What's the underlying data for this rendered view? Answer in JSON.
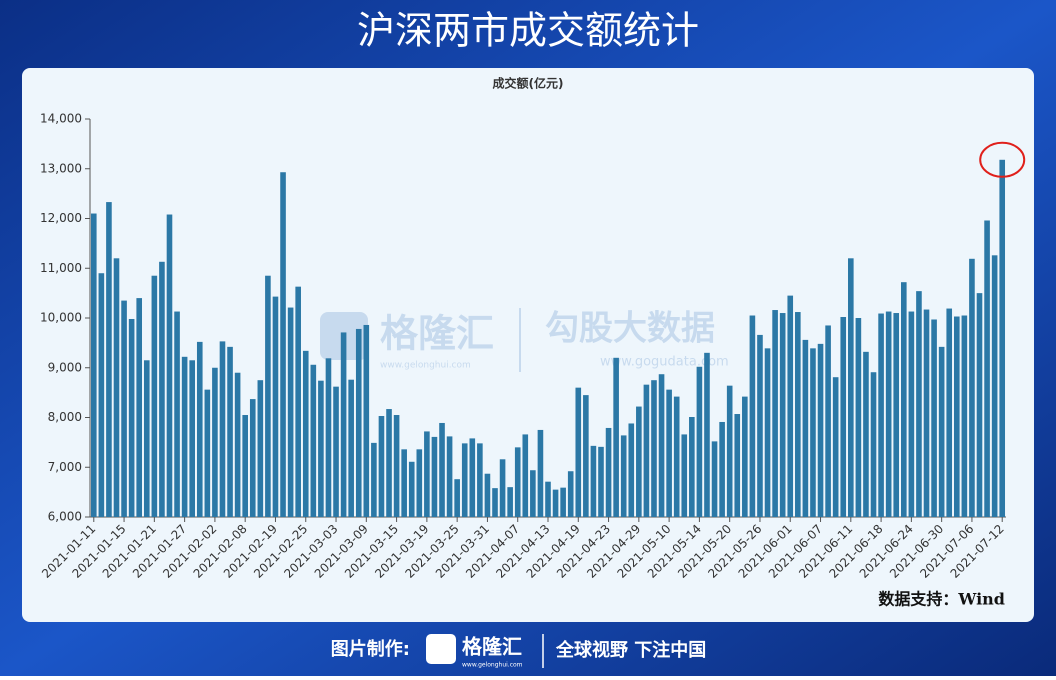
{
  "header": {
    "title": "沪深两市成交额统计"
  },
  "chart_data": {
    "type": "bar",
    "title": "成交额(亿元)",
    "color": "#2b78a6",
    "grid": false,
    "categories": [
      "2021-01-11",
      null,
      null,
      null,
      "2021-01-15",
      null,
      null,
      null,
      "2021-01-21",
      null,
      null,
      null,
      "2021-01-27",
      null,
      null,
      null,
      "2021-02-02",
      null,
      null,
      null,
      "2021-02-08",
      null,
      null,
      null,
      "2021-02-19",
      null,
      null,
      null,
      "2021-02-25",
      null,
      null,
      null,
      "2021-03-03",
      null,
      null,
      null,
      "2021-03-09",
      null,
      null,
      null,
      "2021-03-15",
      null,
      null,
      null,
      "2021-03-19",
      null,
      null,
      null,
      "2021-03-25",
      null,
      null,
      null,
      "2021-03-31",
      null,
      null,
      null,
      "2021-04-07",
      null,
      null,
      null,
      "2021-04-13",
      null,
      null,
      null,
      "2021-04-19",
      null,
      null,
      null,
      "2021-04-23",
      null,
      null,
      null,
      "2021-04-29",
      null,
      null,
      null,
      "2021-05-10",
      null,
      null,
      null,
      "2021-05-14",
      null,
      null,
      null,
      "2021-05-20",
      null,
      null,
      null,
      "2021-05-26",
      null,
      null,
      null,
      "2021-06-01",
      null,
      null,
      null,
      "2021-06-07",
      null,
      null,
      null,
      "2021-06-11",
      null,
      null,
      null,
      "2021-06-18",
      null,
      null,
      null,
      "2021-06-24",
      null,
      null,
      null,
      "2021-06-30",
      null,
      null,
      null,
      "2021-07-06",
      null,
      null,
      null,
      "2021-07-12"
    ],
    "values": [
      12100,
      10900,
      12330,
      11200,
      10350,
      9980,
      10400,
      9150,
      10850,
      11130,
      12080,
      10130,
      9220,
      9150,
      9520,
      8560,
      9000,
      9530,
      9420,
      8900,
      8050,
      8370,
      8750,
      10850,
      10430,
      12930,
      10210,
      10630,
      9340,
      9060,
      8740,
      9190,
      8620,
      9710,
      8760,
      9780,
      9860,
      7490,
      8030,
      8170,
      8050,
      7360,
      7110,
      7360,
      7720,
      7610,
      7890,
      7620,
      6760,
      7480,
      7580,
      7480,
      6870,
      6580,
      7160,
      6600,
      7400,
      7660,
      6940,
      7750,
      6710,
      6550,
      6590,
      6920,
      8600,
      8450,
      7430,
      7410,
      7790,
      9200,
      7640,
      7880,
      8220,
      8660,
      8750,
      8870,
      8560,
      8420,
      7660,
      8010,
      9020,
      9300,
      7520,
      7910,
      8640,
      8070,
      8420,
      10050,
      9660,
      9390,
      10160,
      10100,
      10450,
      10120,
      9560,
      9390,
      9480,
      9850,
      8810,
      10020,
      11200,
      10000,
      9320,
      8910,
      10090,
      10130,
      10100,
      10720,
      10130,
      10540,
      10170,
      9970,
      9420,
      10190,
      10030,
      10050,
      11190,
      10500,
      11960,
      11260,
      13180
    ],
    "ylim": [
      6000,
      14000
    ],
    "yticks": [
      {
        "value": 6000,
        "label": "6,000"
      },
      {
        "value": 7000,
        "label": "7,000"
      },
      {
        "value": 8000,
        "label": "8,000"
      },
      {
        "value": 9000,
        "label": "9,000"
      },
      {
        "value": 10000,
        "label": "10,000"
      },
      {
        "value": 11000,
        "label": "11,000"
      },
      {
        "value": 12000,
        "label": "12,000"
      },
      {
        "value": 13000,
        "label": "13,000"
      },
      {
        "value": 14000,
        "label": "14,000"
      }
    ],
    "source": "数据支持：Wind"
  },
  "watermark": {
    "brand": "格隆汇",
    "brand_url": "www.gelonghui.com",
    "partner": "勾股大数据",
    "partner_url": "www.gogudata.com"
  },
  "footer": {
    "made_by": "图片制作:",
    "brand": "格隆汇",
    "brand_url": "www.gelonghui.com",
    "slogan": "全球视野 下注中国"
  }
}
